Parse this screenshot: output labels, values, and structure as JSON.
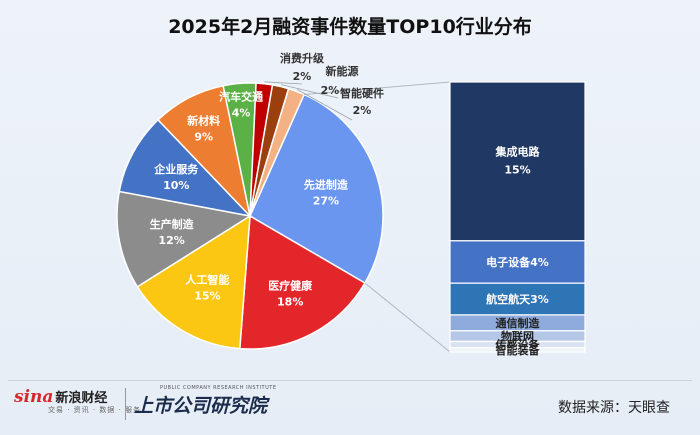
{
  "chart_data": {
    "type": "pie",
    "title": "2025年2月融资事件数量TOP10行业分布",
    "slices": [
      {
        "label": "先进制造",
        "value": 27,
        "value_label": "27%",
        "color": "#6a96f0"
      },
      {
        "label": "医疗健康",
        "value": 18,
        "value_label": "18%",
        "color": "#e3262a"
      },
      {
        "label": "人工智能",
        "value": 15,
        "value_label": "15%",
        "color": "#fcc712"
      },
      {
        "label": "生产制造",
        "value": 12,
        "value_label": "12%",
        "color": "#8c8c8c"
      },
      {
        "label": "企业服务",
        "value": 10,
        "value_label": "10%",
        "color": "#4472c4"
      },
      {
        "label": "新材料",
        "value": 9,
        "value_label": "9%",
        "color": "#ed7d31"
      },
      {
        "label": "汽车交通",
        "value": 4,
        "value_label": "4%",
        "color": "#5cb146"
      },
      {
        "label": "消费升级",
        "value": 2,
        "value_label": "2%",
        "color": "#c00000"
      },
      {
        "label": "新能源",
        "value": 2,
        "value_label": "2%",
        "color": "#9c3f0f"
      },
      {
        "label": "智能硬件",
        "value": 2,
        "value_label": "2%",
        "color": "#f4b183"
      }
    ],
    "breakdown": {
      "parent": "先进制造",
      "segments": [
        {
          "label": "集成电路",
          "value": 15,
          "value_label": "15%",
          "color": "#1f3864"
        },
        {
          "label": "电子设备",
          "value": 4,
          "value_label": "4%",
          "color": "#4472c4"
        },
        {
          "label": "航空航天",
          "value": 3,
          "value_label": "3%",
          "color": "#2e75b6"
        },
        {
          "label": "通信制造",
          "value": 1.5,
          "value_label": "",
          "color": "#8faadc"
        },
        {
          "label": "物联网",
          "value": 1.0,
          "value_label": "",
          "color": "#b4c7e7"
        },
        {
          "label": "传感设备",
          "value": 0.6,
          "value_label": "",
          "color": "#dae3f3"
        },
        {
          "label": "智能装备",
          "value": 0.4,
          "value_label": "",
          "color": "#eef3fa"
        }
      ]
    }
  },
  "footer": {
    "sina_logo": "sina",
    "sina_name": "新浪财经",
    "sina_sub": "交易 · 资讯 · 数据 · 服务",
    "inst_en": "PUBLIC COMPANY RESEARCH INSTITUTE",
    "inst_cn": "上市公司研究院",
    "source": "数据来源：天眼查"
  }
}
